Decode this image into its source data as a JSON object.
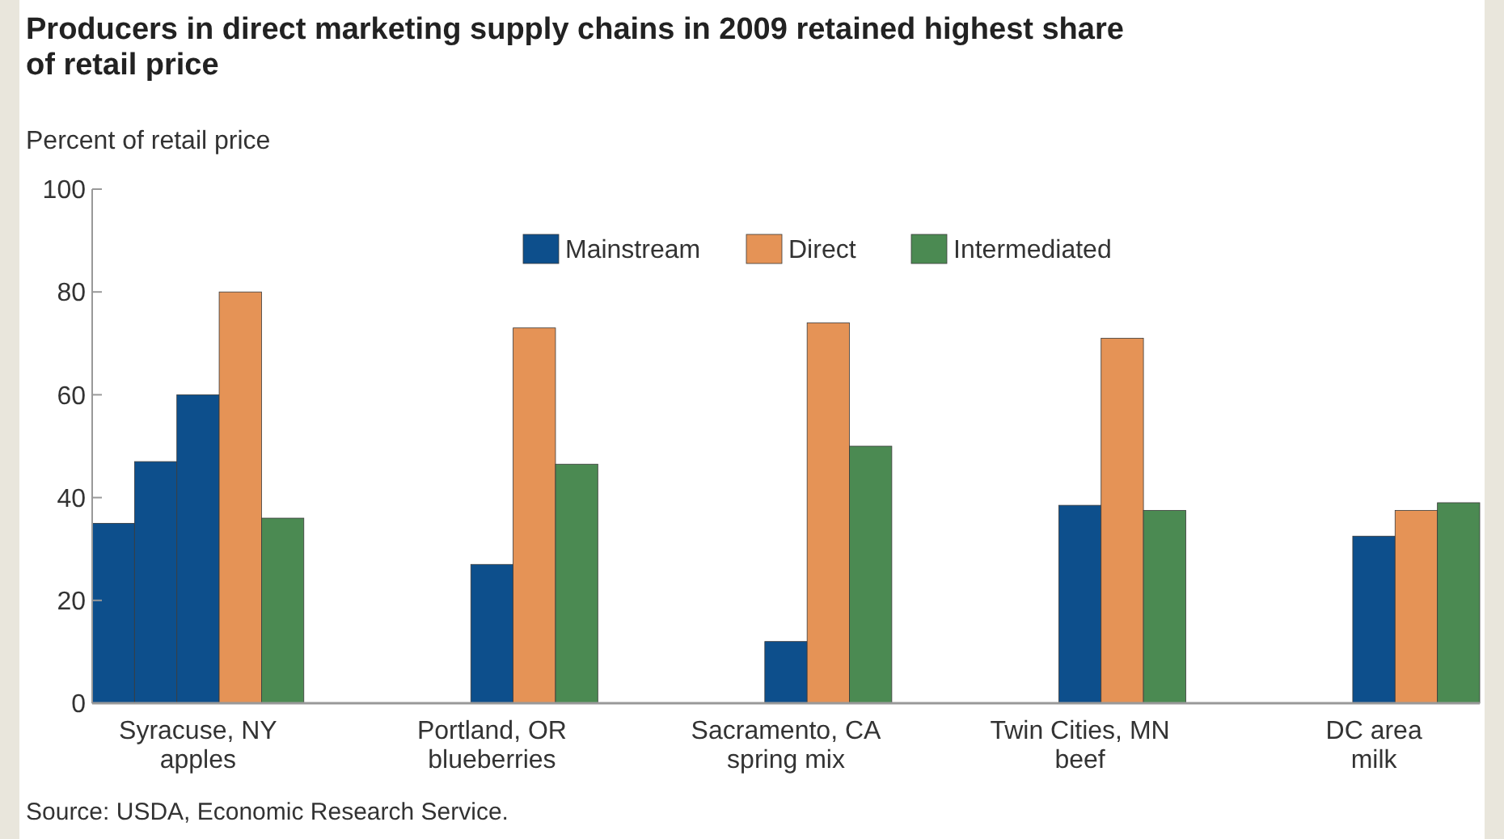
{
  "chart_data": {
    "type": "bar",
    "title": "Producers in direct marketing supply chains in 2009 retained highest share of retail price",
    "ylabel": "Percent of retail price",
    "categories": [
      "Syracuse, NY\napples",
      "Portland, OR\nblueberries",
      "Sacramento, CA\nspring mix",
      "Twin Cities, MN\nbeef",
      "DC area\nmilk"
    ],
    "series": [
      {
        "color": "#0d4f8c",
        "values": [
          35,
          null,
          null,
          null,
          null
        ]
      },
      {
        "color": "#0d4f8c",
        "values": [
          47,
          null,
          null,
          null,
          null
        ]
      },
      {
        "name": "Mainstream",
        "color": "#0d4f8c",
        "values": [
          60,
          27,
          12,
          38.5,
          32.5
        ]
      },
      {
        "name": "Direct",
        "color": "#e59356",
        "values": [
          80,
          73,
          74,
          71,
          37.5
        ]
      },
      {
        "name": "Intermediated",
        "color": "#4b8a52",
        "values": [
          36,
          46.5,
          50,
          37.5,
          39
        ]
      }
    ],
    "ylim": [
      0,
      100
    ],
    "yticks": [
      0,
      20,
      40,
      60,
      80,
      100
    ],
    "legend": "top",
    "grid": false,
    "annotations": [
      "Source: USDA, Economic Research Service."
    ]
  }
}
